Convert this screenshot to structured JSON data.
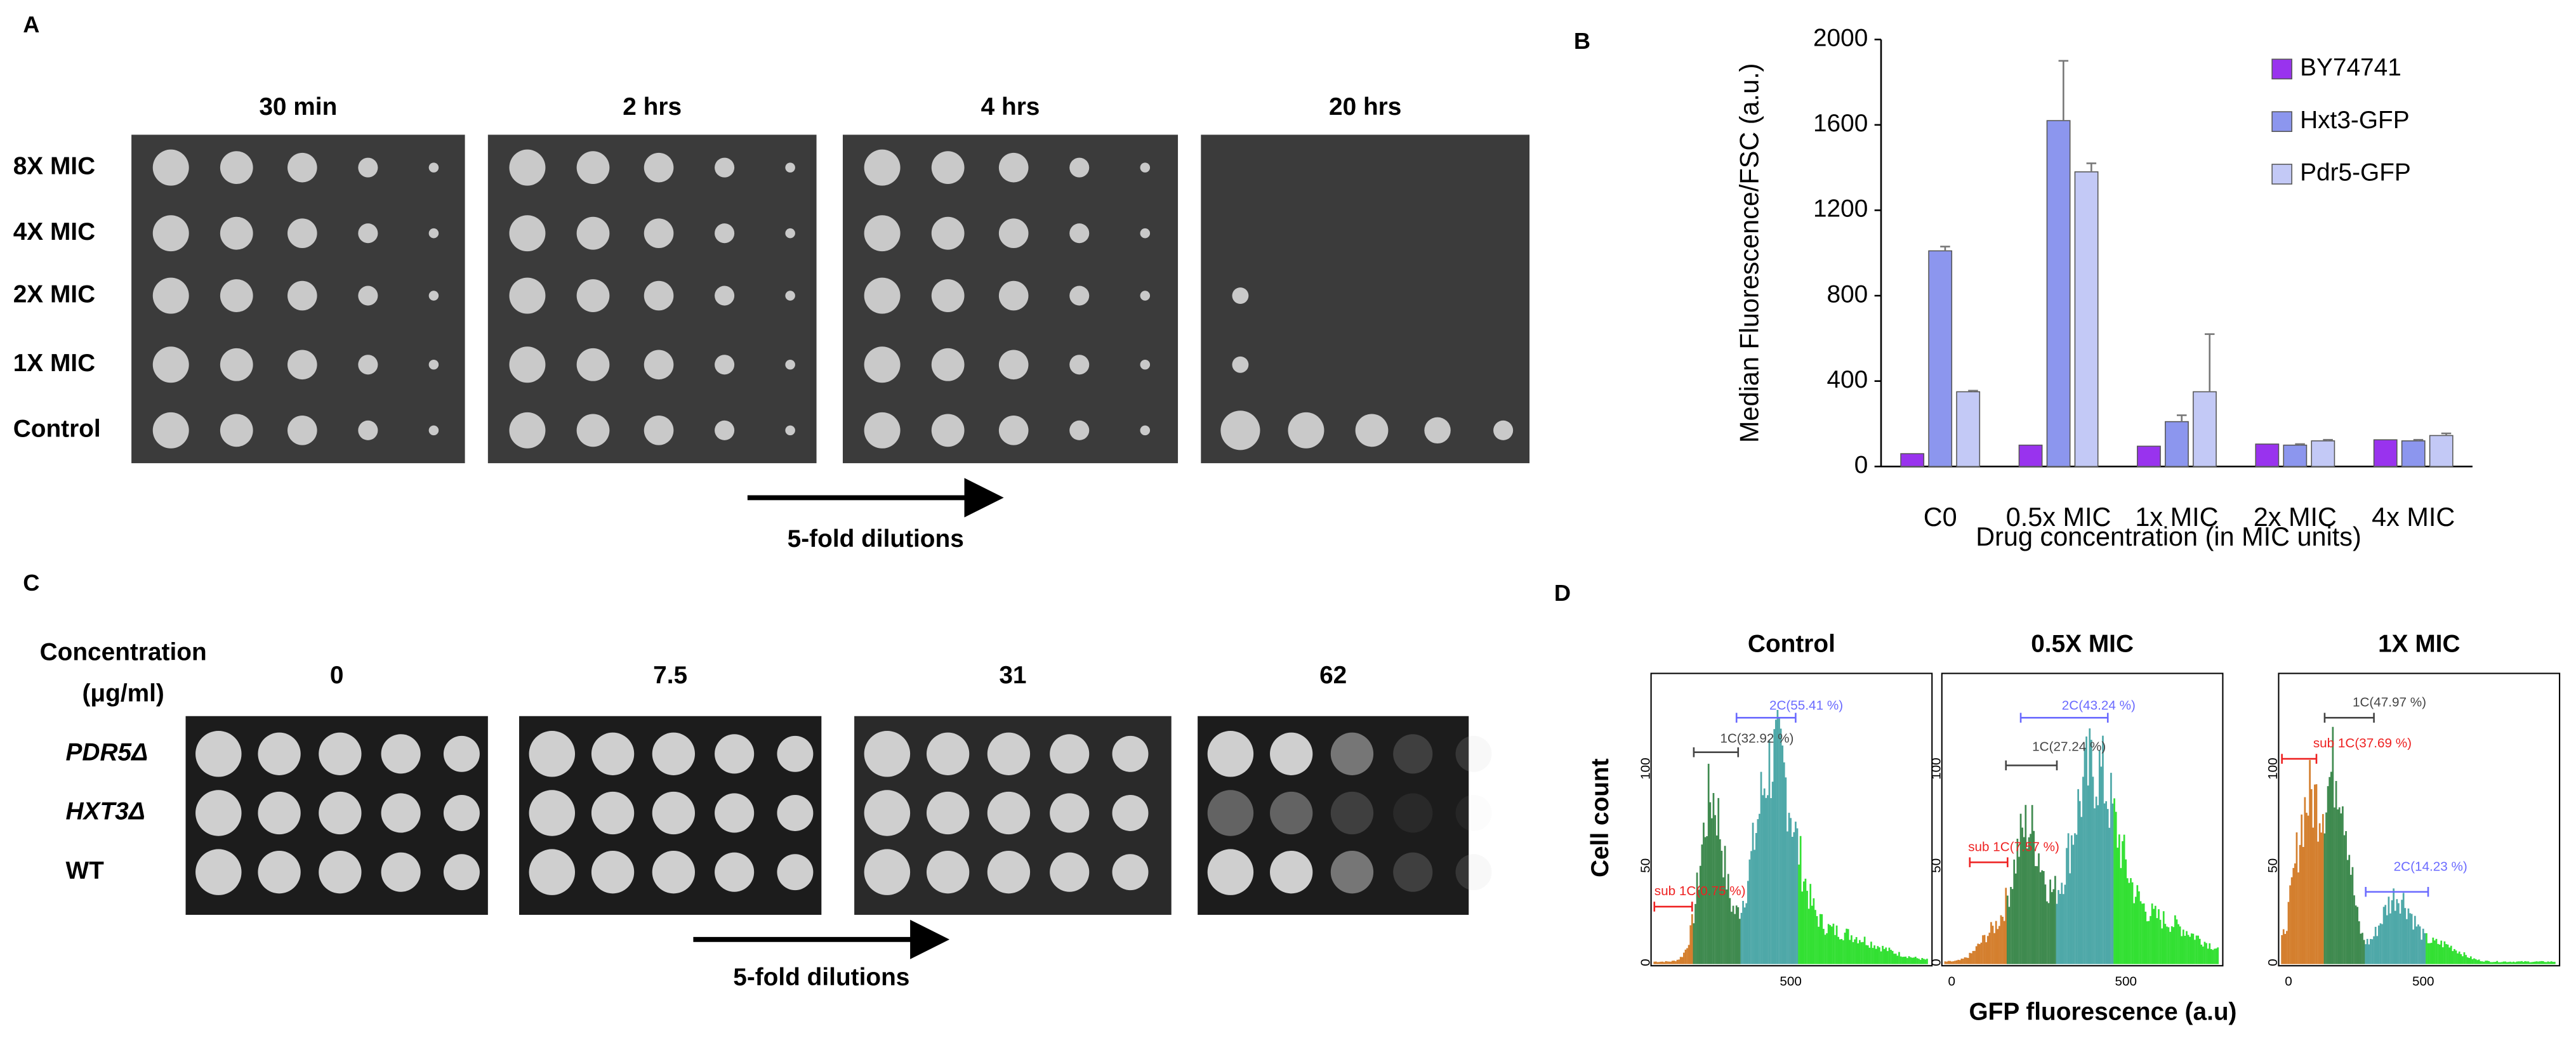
{
  "panel_a": {
    "label": "A",
    "columns": [
      "30 min",
      "2 hrs",
      "4 hrs",
      "20 hrs"
    ],
    "rows": [
      "8X MIC",
      "4X MIC",
      "2X MIC",
      "1X MIC",
      "Control"
    ],
    "arrow_label": "5-fold dilutions"
  },
  "panel_b": {
    "label": "B"
  },
  "chart_data": {
    "type": "bar",
    "y_label": "Median Fluorescence/FSC (a.u.)",
    "x_label": "Drug concentration (in MIC units)",
    "categories": [
      "C0",
      "0.5x MIC",
      "1x MIC",
      "2x MIC",
      "4x MIC"
    ],
    "series": [
      {
        "name": "BY74741",
        "color": "#9933ee",
        "values": [
          60,
          100,
          95,
          105,
          125
        ]
      },
      {
        "name": "Hxt3-GFP",
        "color": "#8c96ee",
        "values": [
          1010,
          1620,
          210,
          100,
          120
        ],
        "errors": [
          20,
          280,
          30,
          5,
          5
        ]
      },
      {
        "name": "Pdr5-GFP",
        "color": "#c3c9f6",
        "values": [
          350,
          1380,
          350,
          120,
          145
        ],
        "errors": [
          5,
          40,
          270,
          5,
          10
        ]
      }
    ],
    "ylim": [
      0,
      2000
    ],
    "yticks": [
      0,
      400,
      800,
      1200,
      1600,
      2000
    ],
    "grid": false,
    "legend": "top-right"
  },
  "panel_c": {
    "label": "C",
    "concentration_label": [
      "Concentration",
      "(μg/ml)"
    ],
    "columns": [
      0,
      7.5,
      31,
      62
    ],
    "rows": [
      "PDR5Δ",
      "HXT3Δ",
      "WT"
    ],
    "arrow_label": "5-fold dilutions"
  },
  "panel_d": {
    "label": "D",
    "y_label": "Cell count",
    "x_label": "GFP fluorescence (a.u)",
    "plots": [
      {
        "title": "Control",
        "gates": [
          "2C(55.41 %)",
          "1C(32.92 %)",
          "sub 1C(0.75 %)"
        ],
        "yticks": [
          0,
          50,
          100
        ],
        "xticks": [
          500
        ]
      },
      {
        "title": "0.5X MIC",
        "gates": [
          "2C(43.24 %)",
          "1C(27.24 %)",
          "sub 1C(7.57 %)"
        ],
        "yticks": [
          0,
          50,
          100
        ],
        "xticks": [
          0,
          500
        ]
      },
      {
        "title": "1X MIC",
        "gates": [
          "1C(47.97 %)",
          "sub 1C(37.69 %)",
          "2C(14.23 %)"
        ],
        "yticks": [
          0,
          50,
          100
        ],
        "xticks": [
          0,
          500
        ]
      }
    ]
  }
}
